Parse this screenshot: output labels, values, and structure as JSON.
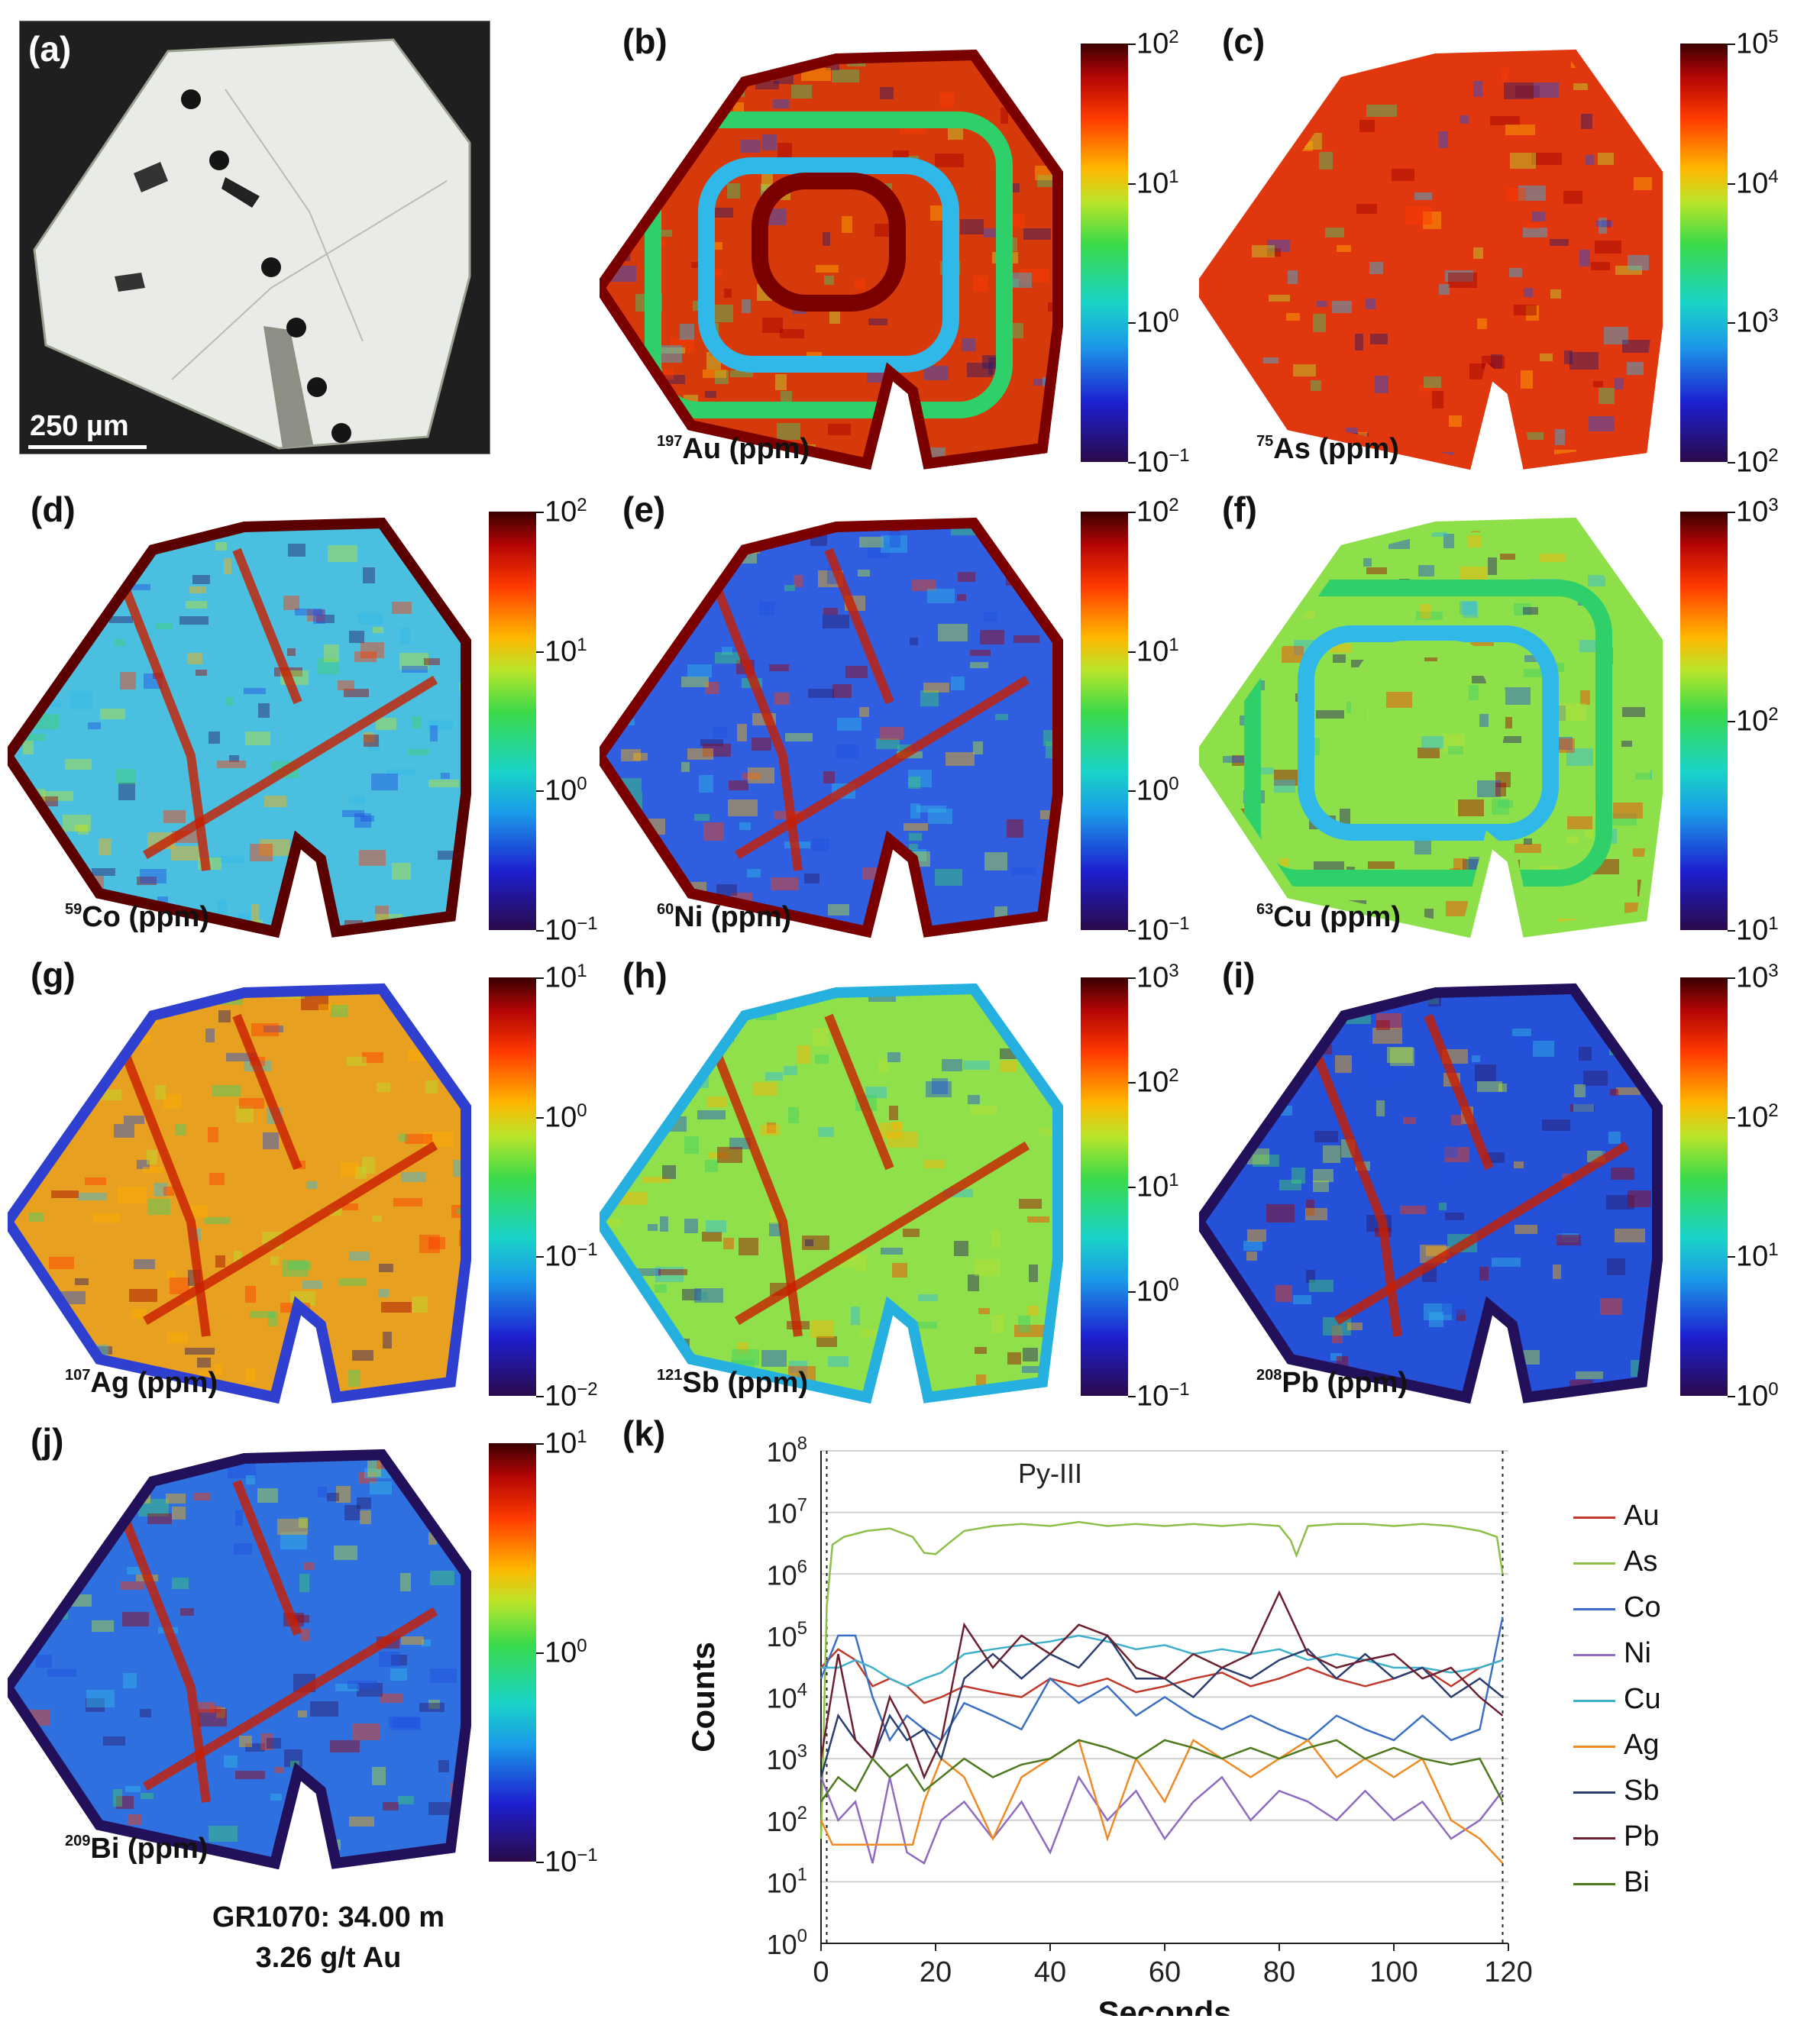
{
  "figure": {
    "panels": {
      "a": {
        "letter": "(a)",
        "scale_bar": "250 µm"
      },
      "b": {
        "letter": "(b)",
        "iso": "197",
        "label": "Au (ppm)",
        "cbar": [
          "10",
          "2",
          "10",
          "1",
          "10",
          "0",
          "10",
          "−1"
        ],
        "fill": "#d73a0a",
        "ring": "#7a0000",
        "pattern": "zoned"
      },
      "c": {
        "letter": "(c)",
        "iso": "75",
        "label": "As (ppm)",
        "cbar": [
          "10",
          "5",
          "10",
          "4",
          "10",
          "3",
          "10",
          "2"
        ],
        "fill": "#e0370f",
        "ring": "#e0370f",
        "pattern": "uniform"
      },
      "d": {
        "letter": "(d)",
        "iso": "59",
        "label": "Co (ppm)",
        "cbar": [
          "10",
          "2",
          "10",
          "1",
          "10",
          "0",
          "10",
          "−1"
        ],
        "fill": "#4bbfe0",
        "ring": "#5a0000",
        "pattern": "veins"
      },
      "e": {
        "letter": "(e)",
        "iso": "60",
        "label": "Ni (ppm)",
        "cbar": [
          "10",
          "2",
          "10",
          "1",
          "10",
          "0",
          "10",
          "−1"
        ],
        "fill": "#2f5fe0",
        "ring": "#7a0000",
        "pattern": "veins"
      },
      "f": {
        "letter": "(f)",
        "iso": "63",
        "label": "Cu (ppm)",
        "cbar": [
          "10",
          "3",
          "10",
          "2",
          "10",
          "1"
        ],
        "fill": "#8ee04a",
        "ring": "#8ee04a",
        "pattern": "zoned"
      },
      "g": {
        "letter": "(g)",
        "iso": "107",
        "label": "Ag (ppm)",
        "cbar": [
          "10",
          "1",
          "10",
          "0",
          "10",
          "−1",
          "10",
          "−2"
        ],
        "fill": "#e8a020",
        "ring": "#2f3fd0",
        "pattern": "veins"
      },
      "h": {
        "letter": "(h)",
        "iso": "121",
        "label": "Sb (ppm)",
        "cbar": [
          "10",
          "3",
          "10",
          "2",
          "10",
          "1",
          "10",
          "0",
          "10",
          "−1"
        ],
        "fill": "#8fe04a",
        "ring": "#25b0e0",
        "pattern": "veins"
      },
      "i": {
        "letter": "(i)",
        "iso": "208",
        "label": "Pb (ppm)",
        "cbar": [
          "10",
          "3",
          "10",
          "2",
          "10",
          "1",
          "10",
          "0"
        ],
        "fill": "#2550d8",
        "ring": "#22105a",
        "pattern": "veins"
      },
      "j": {
        "letter": "(j)",
        "iso": "209",
        "label": "Bi (ppm)",
        "cbar": [
          "10",
          "1",
          "10",
          "0",
          "10",
          "−1"
        ],
        "fill": "#2f70e0",
        "ring": "#22105a",
        "pattern": "veins"
      },
      "k": {
        "letter": "(k)"
      }
    },
    "caption_line1": "GR1070: 34.00 m",
    "caption_line2": "3.26 g/t Au"
  },
  "chart_data": {
    "type": "line",
    "annotation": "Py-III",
    "xlabel": "Seconds",
    "ylabel": "Counts",
    "xlim": [
      0,
      120
    ],
    "ylim": [
      1,
      100000000
    ],
    "yscale": "log",
    "xticks": [
      0,
      20,
      40,
      60,
      80,
      100,
      120
    ],
    "yticks": [
      "10^0",
      "10^1",
      "10^2",
      "10^3",
      "10^4",
      "10^5",
      "10^6",
      "10^7",
      "10^8"
    ],
    "grid": "horizontal",
    "legend_position": "right",
    "series": [
      {
        "name": "Au",
        "color": "#c0392b",
        "x": [
          0,
          3,
          6,
          9,
          12,
          15,
          18,
          21,
          25,
          30,
          35,
          40,
          45,
          50,
          55,
          60,
          65,
          70,
          75,
          80,
          85,
          90,
          95,
          100,
          105,
          110,
          115,
          119
        ],
        "values": [
          30000,
          60000,
          40000,
          15000,
          20000,
          15000,
          8000,
          10000,
          15000,
          12000,
          10000,
          20000,
          15000,
          20000,
          12000,
          15000,
          20000,
          25000,
          15000,
          20000,
          30000,
          20000,
          15000,
          20000,
          30000,
          15000,
          30000,
          40000
        ]
      },
      {
        "name": "As",
        "color": "#8dc04a",
        "x": [
          0,
          1,
          2,
          4,
          8,
          12,
          16,
          18,
          20,
          22,
          25,
          30,
          35,
          40,
          45,
          50,
          55,
          60,
          65,
          70,
          75,
          80,
          82,
          83,
          85,
          90,
          95,
          100,
          105,
          110,
          115,
          118,
          119
        ],
        "values": [
          50,
          300000,
          3000000,
          4000000,
          5000000,
          5500000,
          4000000,
          2200000,
          2100000,
          3000000,
          5000000,
          6000000,
          6500000,
          6000000,
          7000000,
          6000000,
          6500000,
          6000000,
          6500000,
          6000000,
          6500000,
          6000000,
          3500000,
          2000000,
          6000000,
          6500000,
          6500000,
          6000000,
          6500000,
          6000000,
          5000000,
          4000000,
          1000000
        ]
      },
      {
        "name": "Co",
        "color": "#3b6fc4",
        "x": [
          0,
          3,
          6,
          9,
          12,
          15,
          18,
          21,
          25,
          30,
          35,
          40,
          45,
          50,
          55,
          60,
          65,
          70,
          75,
          80,
          85,
          90,
          95,
          100,
          105,
          110,
          115,
          119
        ],
        "values": [
          20000,
          100000,
          100000,
          10000,
          2000,
          5000,
          3000,
          2000,
          8000,
          5000,
          3000,
          20000,
          8000,
          15000,
          5000,
          10000,
          5000,
          3000,
          5000,
          3000,
          2000,
          5000,
          3000,
          2000,
          5000,
          2000,
          3000,
          200000
        ]
      },
      {
        "name": "Ni",
        "color": "#8e6bbf",
        "x": [
          0,
          3,
          6,
          9,
          12,
          15,
          18,
          21,
          25,
          30,
          35,
          40,
          45,
          50,
          55,
          60,
          65,
          70,
          75,
          80,
          85,
          90,
          95,
          100,
          105,
          110,
          115,
          119
        ],
        "values": [
          500,
          100,
          200,
          20,
          500,
          30,
          20,
          100,
          200,
          50,
          200,
          30,
          500,
          100,
          300,
          50,
          200,
          500,
          100,
          300,
          200,
          100,
          300,
          100,
          200,
          50,
          100,
          300
        ]
      },
      {
        "name": "Cu",
        "color": "#3fb0c9",
        "x": [
          0,
          3,
          6,
          9,
          12,
          15,
          18,
          21,
          25,
          30,
          35,
          40,
          45,
          50,
          55,
          60,
          65,
          70,
          75,
          80,
          85,
          90,
          95,
          100,
          105,
          110,
          115,
          119
        ],
        "values": [
          30000,
          30000,
          40000,
          30000,
          20000,
          15000,
          20000,
          25000,
          50000,
          60000,
          70000,
          80000,
          100000,
          80000,
          60000,
          70000,
          50000,
          60000,
          50000,
          60000,
          40000,
          50000,
          40000,
          30000,
          30000,
          25000,
          30000,
          40000
        ]
      },
      {
        "name": "Ag",
        "color": "#f08a24",
        "x": [
          0,
          2,
          6,
          10,
          16,
          18,
          21,
          25,
          30,
          35,
          40,
          45,
          50,
          55,
          60,
          65,
          70,
          75,
          80,
          85,
          90,
          95,
          100,
          105,
          110,
          115,
          119
        ],
        "values": [
          100,
          40,
          40,
          40,
          40,
          200,
          1000,
          500,
          50,
          500,
          1000,
          2000,
          50,
          1000,
          200,
          2000,
          1000,
          500,
          1000,
          2000,
          500,
          1000,
          500,
          1000,
          100,
          50,
          20
        ]
      },
      {
        "name": "Sb",
        "color": "#2c3e70",
        "x": [
          0,
          3,
          6,
          9,
          12,
          15,
          18,
          21,
          25,
          30,
          35,
          40,
          45,
          50,
          55,
          60,
          65,
          70,
          75,
          80,
          85,
          90,
          95,
          100,
          105,
          110,
          115,
          119
        ],
        "values": [
          500,
          5000,
          2000,
          1000,
          5000,
          2000,
          3000,
          1000,
          20000,
          50000,
          20000,
          50000,
          30000,
          100000,
          20000,
          20000,
          10000,
          30000,
          20000,
          40000,
          60000,
          20000,
          50000,
          20000,
          30000,
          10000,
          20000,
          10000
        ]
      },
      {
        "name": "Pb",
        "color": "#6b1f2f",
        "x": [
          0,
          3,
          6,
          9,
          12,
          15,
          18,
          21,
          25,
          30,
          35,
          40,
          45,
          50,
          55,
          60,
          65,
          70,
          75,
          80,
          85,
          90,
          95,
          100,
          105,
          110,
          115,
          119
        ],
        "values": [
          1000,
          50000,
          2000,
          1000,
          10000,
          3000,
          500,
          2000,
          150000,
          30000,
          100000,
          50000,
          150000,
          100000,
          30000,
          20000,
          50000,
          30000,
          50000,
          500000,
          50000,
          30000,
          40000,
          50000,
          20000,
          30000,
          10000,
          5000
        ]
      },
      {
        "name": "Bi",
        "color": "#4d7a1f",
        "x": [
          0,
          3,
          6,
          9,
          12,
          15,
          18,
          21,
          25,
          30,
          35,
          40,
          45,
          50,
          55,
          60,
          65,
          70,
          75,
          80,
          85,
          90,
          95,
          100,
          105,
          110,
          115,
          119
        ],
        "values": [
          200,
          500,
          300,
          1000,
          500,
          800,
          300,
          500,
          1000,
          500,
          800,
          1000,
          2000,
          1500,
          1000,
          2000,
          1500,
          1000,
          1500,
          1000,
          1500,
          2000,
          1000,
          1500,
          1000,
          800,
          1000,
          200
        ]
      }
    ]
  }
}
